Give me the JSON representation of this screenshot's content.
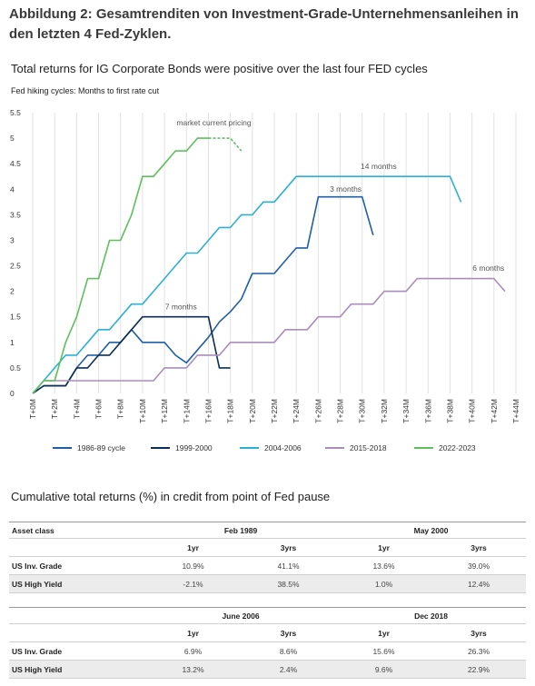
{
  "figure_title": "Abbildung 2: Gesamtrenditen von Investment-Grade-Unternehmensanleihen in den letzten 4 Fed-Zyklen.",
  "chart_data": {
    "type": "line",
    "title": "Total returns for IG Corporate Bonds were positive over the last four FED cycles",
    "subtitle": "Fed hiking cycles: Months to first rate cut",
    "ylim": [
      0,
      5.5
    ],
    "y_ticks": [
      "0",
      "0.5",
      "1",
      "1.5",
      "2",
      "2.5",
      "3",
      "3.5",
      "4",
      "4.5",
      "5",
      "5.5"
    ],
    "x_ticks": [
      "T+0M",
      "T+2M",
      "T+4M",
      "T+6M",
      "T+8M",
      "T+10M",
      "T+12M",
      "T+14M",
      "T+16M",
      "T+18M",
      "T+20M",
      "T+22M",
      "T+24M",
      "T+26M",
      "T+28M",
      "T+30M",
      "T+32M",
      "T+34M",
      "T+36M",
      "T+38M",
      "T+40M",
      "T+42M",
      "T+44M"
    ],
    "xlim": [
      0,
      44
    ],
    "grid": "vertical",
    "legend_position": "bottom",
    "series": [
      {
        "name": "1986-89 cycle",
        "color": "#1f5fa8",
        "points": [
          [
            0,
            0
          ],
          [
            1,
            0.15
          ],
          [
            2,
            0.15
          ],
          [
            3,
            0.15
          ],
          [
            4,
            0.5
          ],
          [
            5,
            0.75
          ],
          [
            6,
            0.75
          ],
          [
            7,
            1.0
          ],
          [
            8,
            1.0
          ],
          [
            9,
            1.25
          ],
          [
            10,
            1.0
          ],
          [
            11,
            1.0
          ],
          [
            12,
            1.0
          ],
          [
            13,
            0.75
          ],
          [
            14,
            0.6
          ],
          [
            15,
            0.85
          ],
          [
            16,
            1.1
          ],
          [
            17,
            1.4
          ],
          [
            18,
            1.6
          ],
          [
            19,
            1.85
          ],
          [
            20,
            2.35
          ],
          [
            21,
            2.35
          ],
          [
            22,
            2.35
          ],
          [
            23,
            2.6
          ],
          [
            24,
            2.85
          ],
          [
            25,
            2.85
          ],
          [
            26,
            3.85
          ],
          [
            27,
            3.85
          ],
          [
            28,
            3.85
          ],
          [
            29,
            3.85
          ],
          [
            30,
            3.85
          ],
          [
            31,
            3.1
          ]
        ]
      },
      {
        "name": "1999-2000",
        "color": "#0a2e57",
        "points": [
          [
            0,
            0
          ],
          [
            1,
            0.15
          ],
          [
            3,
            0.15
          ],
          [
            4,
            0.5
          ],
          [
            5,
            0.5
          ],
          [
            6,
            0.75
          ],
          [
            7,
            0.75
          ],
          [
            8,
            1.0
          ],
          [
            9,
            1.25
          ],
          [
            10,
            1.5
          ],
          [
            11,
            1.5
          ],
          [
            12,
            1.5
          ],
          [
            13,
            1.5
          ],
          [
            14,
            1.5
          ],
          [
            15,
            1.5
          ],
          [
            16,
            1.5
          ],
          [
            17,
            0.5
          ],
          [
            18,
            0.5
          ]
        ]
      },
      {
        "name": "2004-2006",
        "color": "#2bb0d8",
        "points": [
          [
            0,
            0
          ],
          [
            1,
            0.25
          ],
          [
            2,
            0.5
          ],
          [
            3,
            0.75
          ],
          [
            4,
            0.75
          ],
          [
            5,
            1.0
          ],
          [
            6,
            1.25
          ],
          [
            7,
            1.25
          ],
          [
            8,
            1.5
          ],
          [
            9,
            1.75
          ],
          [
            10,
            1.75
          ],
          [
            11,
            2.0
          ],
          [
            12,
            2.25
          ],
          [
            13,
            2.5
          ],
          [
            14,
            2.75
          ],
          [
            15,
            2.75
          ],
          [
            16,
            3.0
          ],
          [
            17,
            3.25
          ],
          [
            18,
            3.25
          ],
          [
            19,
            3.5
          ],
          [
            20,
            3.5
          ],
          [
            21,
            3.75
          ],
          [
            22,
            3.75
          ],
          [
            23,
            4.0
          ],
          [
            24,
            4.25
          ],
          [
            25,
            4.25
          ],
          [
            26,
            4.25
          ],
          [
            27,
            4.25
          ],
          [
            28,
            4.25
          ],
          [
            29,
            4.25
          ],
          [
            30,
            4.25
          ],
          [
            31,
            4.25
          ],
          [
            32,
            4.25
          ],
          [
            33,
            4.25
          ],
          [
            34,
            4.25
          ],
          [
            35,
            4.25
          ],
          [
            36,
            4.25
          ],
          [
            37,
            4.25
          ],
          [
            38,
            4.25
          ],
          [
            39,
            3.75
          ]
        ]
      },
      {
        "name": "2015-2018",
        "color": "#a98dbd",
        "points": [
          [
            0,
            0
          ],
          [
            1,
            0.25
          ],
          [
            3,
            0.25
          ],
          [
            4,
            0.25
          ],
          [
            5,
            0.25
          ],
          [
            6,
            0.25
          ],
          [
            7,
            0.25
          ],
          [
            8,
            0.25
          ],
          [
            9,
            0.25
          ],
          [
            10,
            0.25
          ],
          [
            11,
            0.25
          ],
          [
            12,
            0.5
          ],
          [
            13,
            0.5
          ],
          [
            14,
            0.5
          ],
          [
            15,
            0.75
          ],
          [
            16,
            0.75
          ],
          [
            17,
            0.75
          ],
          [
            18,
            1.0
          ],
          [
            19,
            1.0
          ],
          [
            20,
            1.0
          ],
          [
            21,
            1.0
          ],
          [
            22,
            1.0
          ],
          [
            23,
            1.25
          ],
          [
            24,
            1.25
          ],
          [
            25,
            1.25
          ],
          [
            26,
            1.5
          ],
          [
            27,
            1.5
          ],
          [
            28,
            1.5
          ],
          [
            29,
            1.75
          ],
          [
            30,
            1.75
          ],
          [
            31,
            1.75
          ],
          [
            32,
            2.0
          ],
          [
            33,
            2.0
          ],
          [
            34,
            2.0
          ],
          [
            35,
            2.25
          ],
          [
            36,
            2.25
          ],
          [
            37,
            2.25
          ],
          [
            38,
            2.25
          ],
          [
            39,
            2.25
          ],
          [
            40,
            2.25
          ],
          [
            41,
            2.25
          ],
          [
            42,
            2.25
          ],
          [
            43,
            2.0
          ]
        ]
      },
      {
        "name": "2022-2023",
        "color": "#5cc05c",
        "points": [
          [
            0,
            0
          ],
          [
            1,
            0.25
          ],
          [
            2,
            0.25
          ],
          [
            3,
            1.0
          ],
          [
            4,
            1.5
          ],
          [
            5,
            2.25
          ],
          [
            6,
            2.25
          ],
          [
            7,
            3.0
          ],
          [
            8,
            3.0
          ],
          [
            9,
            3.5
          ],
          [
            10,
            4.25
          ],
          [
            11,
            4.25
          ],
          [
            12,
            4.5
          ],
          [
            13,
            4.75
          ],
          [
            14,
            4.75
          ],
          [
            15,
            5.0
          ],
          [
            16,
            5.0
          ]
        ],
        "dashed_points": [
          [
            16,
            5.0
          ],
          [
            17,
            5.0
          ],
          [
            18,
            5.0
          ],
          [
            19,
            4.75
          ]
        ]
      }
    ],
    "annotations": [
      {
        "text": "market current pricing",
        "x": 16.5,
        "y": 5.25
      },
      {
        "text": "14 months",
        "x": 31.5,
        "y": 4.4
      },
      {
        "text": "3 months",
        "x": 28.5,
        "y": 3.95
      },
      {
        "text": "7 months",
        "x": 13.5,
        "y": 1.65
      },
      {
        "text": "6 months",
        "x": 41.5,
        "y": 2.4
      }
    ]
  },
  "table": {
    "title": "Cumulative total returns (%) in credit from point of Fed pause",
    "blocks": [
      {
        "asset_header": "Asset class",
        "periods": [
          "Feb 1989",
          "May 2000"
        ],
        "sub_headers": [
          "1yr",
          "3yrs",
          "1yr",
          "3yrs"
        ],
        "rows": [
          {
            "label": "US Inv. Grade",
            "values": [
              "10.9%",
              "41.1%",
              "13.6%",
              "39.0%"
            ]
          },
          {
            "label": "US High Yield",
            "values": [
              "-2.1%",
              "38.5%",
              "1.0%",
              "12.4%"
            ]
          }
        ]
      },
      {
        "asset_header": "",
        "periods": [
          "June 2006",
          "Dec 2018"
        ],
        "sub_headers": [
          "1yr",
          "3yrs",
          "1yr",
          "3yrs"
        ],
        "rows": [
          {
            "label": "US Inv. Grade",
            "values": [
              "6.9%",
              "8.6%",
              "15.6%",
              "26.3%"
            ]
          },
          {
            "label": "US High Yield",
            "values": [
              "13.2%",
              "2.4%",
              "9.6%",
              "22.9%"
            ]
          }
        ]
      }
    ]
  }
}
